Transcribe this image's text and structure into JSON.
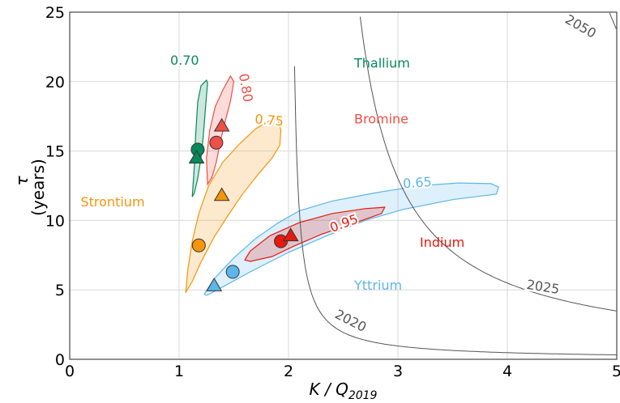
{
  "chart_data": {
    "type": "scatter",
    "xlabel": "K / Q",
    "xlabel_sub": "2019",
    "ylabel_symbol": "τ",
    "ylabel_unit": "(years)",
    "xlim": [
      0,
      5
    ],
    "ylim": [
      0,
      25
    ],
    "x_ticks": [
      "0",
      "1",
      "2",
      "3",
      "4",
      "5"
    ],
    "y_ticks": [
      "0",
      "5",
      "10",
      "15",
      "20",
      "25"
    ],
    "grid": true,
    "series": [
      {
        "name": "Thallium",
        "color": "#07895a",
        "level_label": "0.70",
        "circle": [
          1.17,
          15.1
        ],
        "triangle": [
          1.16,
          14.5
        ],
        "region": [
          [
            1.12,
            11.7
          ],
          [
            1.14,
            14
          ],
          [
            1.15,
            16
          ],
          [
            1.17,
            18.5
          ],
          [
            1.2,
            19.7
          ],
          [
            1.25,
            20.1
          ],
          [
            1.26,
            19.9
          ],
          [
            1.24,
            18
          ],
          [
            1.22,
            16
          ],
          [
            1.2,
            14.5
          ],
          [
            1.17,
            13
          ],
          [
            1.14,
            12
          ]
        ]
      },
      {
        "name": "Bromine",
        "color": "#ef5046",
        "level_label": "0.80",
        "circle": [
          1.34,
          15.6
        ],
        "triangle": [
          1.39,
          16.8
        ],
        "region": [
          [
            1.26,
            12.6
          ],
          [
            1.25,
            14.5
          ],
          [
            1.28,
            16.5
          ],
          [
            1.33,
            18.2
          ],
          [
            1.4,
            19.4
          ],
          [
            1.47,
            20.4
          ],
          [
            1.5,
            20
          ],
          [
            1.47,
            18.6
          ],
          [
            1.43,
            17.4
          ],
          [
            1.38,
            15.8
          ],
          [
            1.34,
            14.2
          ],
          [
            1.3,
            13.1
          ]
        ]
      },
      {
        "name": "Strontium",
        "color": "#f5950c",
        "level_label": "0.75",
        "circle": [
          1.18,
          8.2
        ],
        "triangle": [
          1.39,
          11.8
        ],
        "region": [
          [
            1.06,
            4.8
          ],
          [
            1.08,
            6.5
          ],
          [
            1.12,
            8.5
          ],
          [
            1.18,
            10.5
          ],
          [
            1.27,
            12.5
          ],
          [
            1.4,
            14.2
          ],
          [
            1.55,
            15.5
          ],
          [
            1.7,
            16.6
          ],
          [
            1.83,
            17.2
          ],
          [
            1.9,
            17.3
          ],
          [
            1.93,
            16.5
          ],
          [
            1.92,
            15.4
          ],
          [
            1.85,
            14.5
          ],
          [
            1.72,
            13.3
          ],
          [
            1.58,
            11.9
          ],
          [
            1.45,
            10.4
          ],
          [
            1.32,
            8.8
          ],
          [
            1.2,
            7
          ],
          [
            1.12,
            5.6
          ]
        ]
      },
      {
        "name": "Yttrium",
        "color": "#5cb6ea",
        "level_label": "0.65",
        "circle": [
          1.49,
          6.3
        ],
        "triangle": [
          1.32,
          5.3
        ],
        "region": [
          [
            1.23,
            4.7
          ],
          [
            1.32,
            5.8
          ],
          [
            1.5,
            7.3
          ],
          [
            1.7,
            8.7
          ],
          [
            1.9,
            9.8
          ],
          [
            2.1,
            10.7
          ],
          [
            2.4,
            11.4
          ],
          [
            2.8,
            12
          ],
          [
            3.2,
            12.5
          ],
          [
            3.55,
            12.7
          ],
          [
            3.85,
            12.65
          ],
          [
            3.92,
            12.4
          ],
          [
            3.9,
            11.9
          ],
          [
            3.5,
            11.5
          ],
          [
            3.05,
            10.8
          ],
          [
            2.7,
            10
          ],
          [
            2.35,
            8.9
          ],
          [
            2,
            7.7
          ],
          [
            1.65,
            6.3
          ],
          [
            1.35,
            5
          ],
          [
            1.25,
            4.6
          ]
        ]
      },
      {
        "name": "Indium",
        "color": "#e8190e",
        "level_label": "0.95",
        "circle": [
          1.93,
          8.5
        ],
        "triangle": [
          2.02,
          8.9
        ],
        "region": [
          [
            1.6,
            7.15
          ],
          [
            1.65,
            7.8
          ],
          [
            1.83,
            8.9
          ],
          [
            2.1,
            9.85
          ],
          [
            2.4,
            10.5
          ],
          [
            2.7,
            10.85
          ],
          [
            2.88,
            10.95
          ],
          [
            2.85,
            10.5
          ],
          [
            2.6,
            9.8
          ],
          [
            2.3,
            9.0
          ],
          [
            2.05,
            8.15
          ],
          [
            1.85,
            7.4
          ],
          [
            1.65,
            7.05
          ]
        ]
      }
    ],
    "iso_lines": [
      {
        "label": "2020",
        "k": 0.95,
        "label_x": 2.55,
        "label_y": 2.5,
        "angle": 27
      },
      {
        "label": "2025",
        "k": 9.5,
        "label_x": 4.32,
        "label_y": 4.9,
        "angle": 9
      },
      {
        "label": "2050",
        "k": 31.3,
        "label_x": 4.65,
        "label_y": 23.7,
        "angle": 30
      }
    ]
  }
}
